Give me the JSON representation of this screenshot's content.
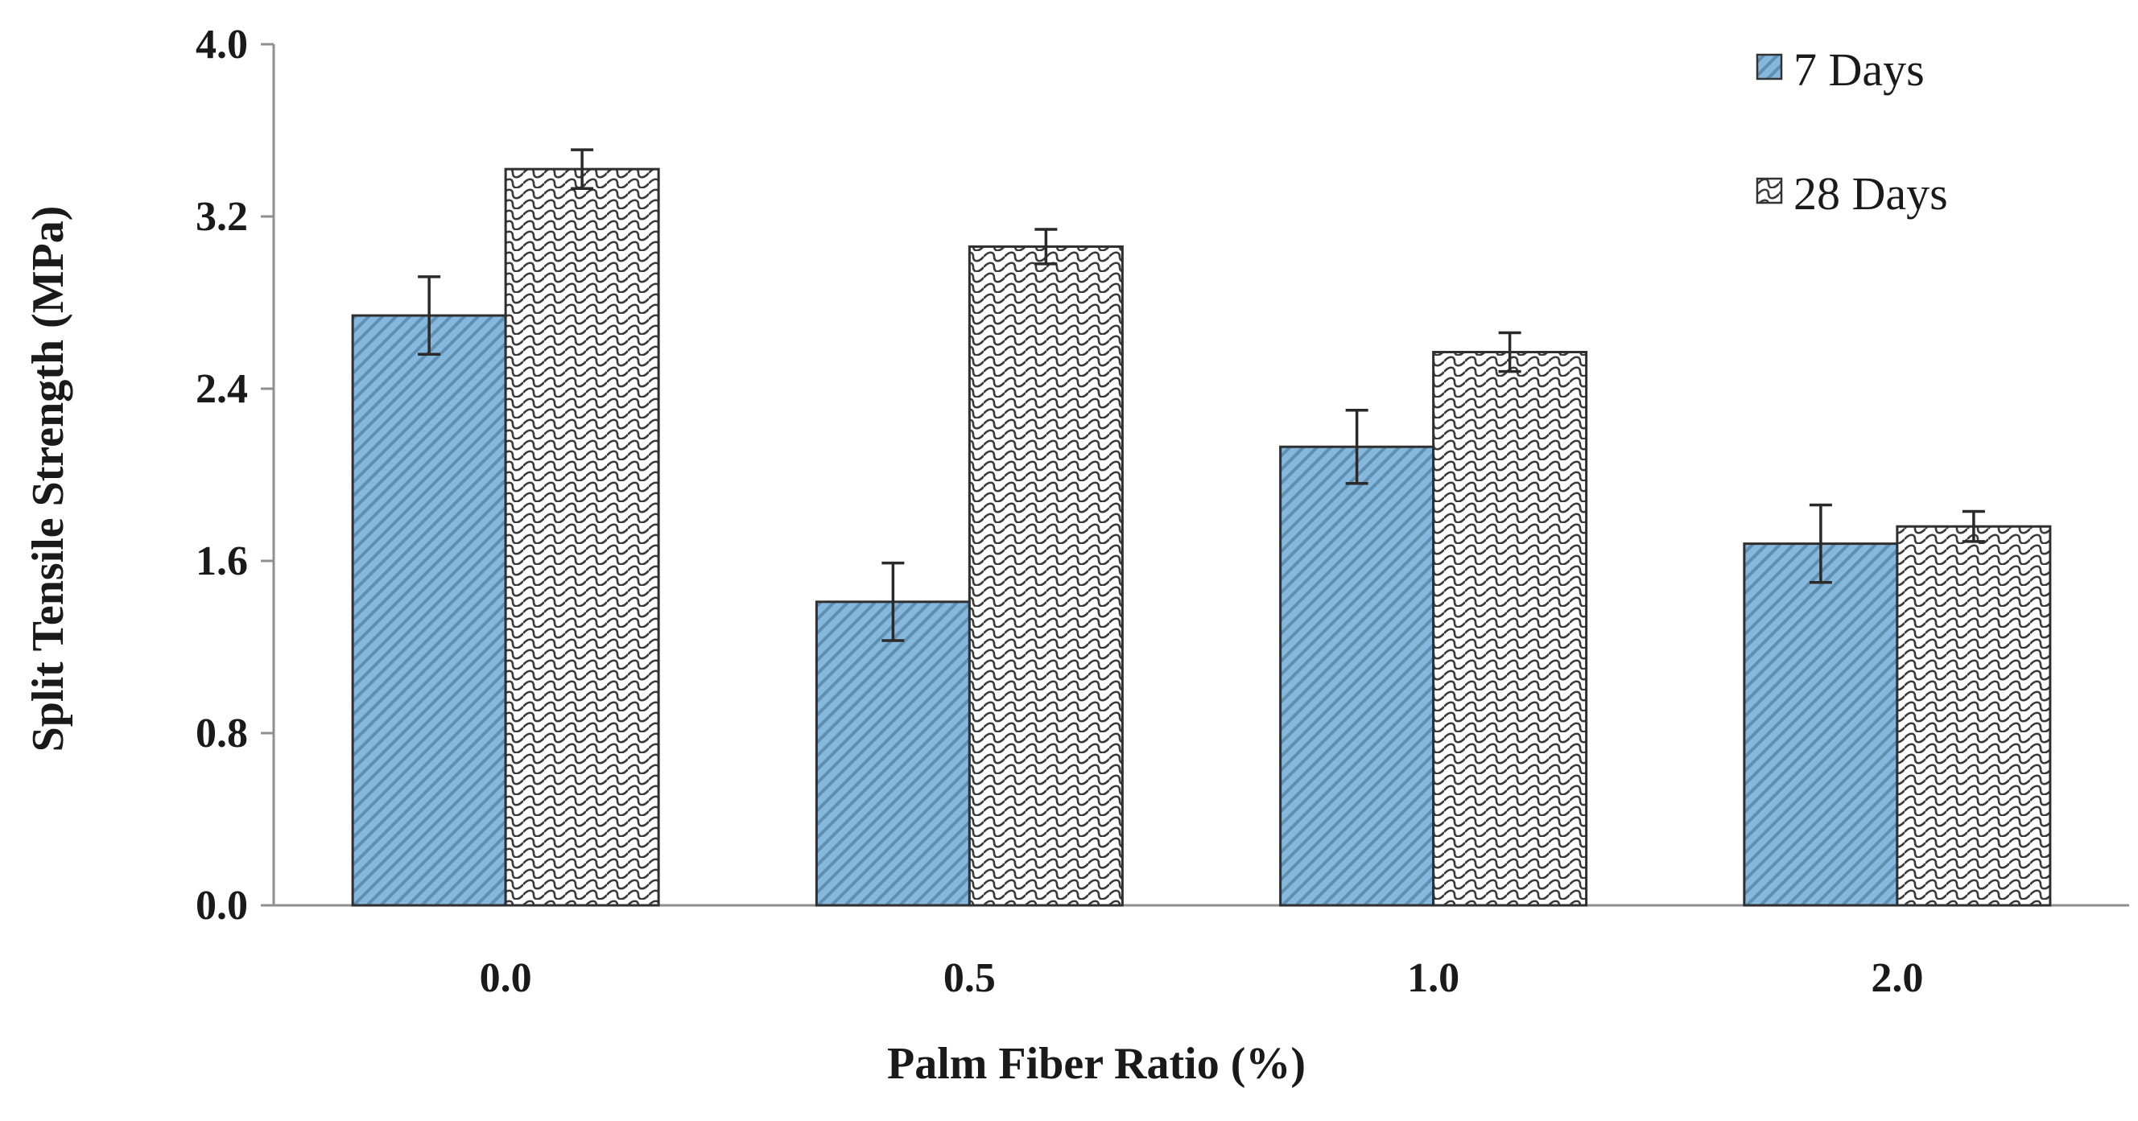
{
  "chart_data": {
    "type": "bar",
    "title": "",
    "xlabel": "Palm Fiber Ratio (%)",
    "ylabel": "Split Tensile Strength (MPa)",
    "categories": [
      "0.0",
      "0.5",
      "1.0",
      "2.0"
    ],
    "y_ticks": [
      "0.0",
      "0.8",
      "1.6",
      "2.4",
      "3.2",
      "4.0"
    ],
    "ylim": [
      0,
      4.0
    ],
    "grid": false,
    "legend_position": "top-right",
    "series": [
      {
        "name": "7 Days",
        "values": [
          2.74,
          1.41,
          2.13,
          1.68
        ],
        "errors": [
          0.18,
          0.18,
          0.17,
          0.18
        ],
        "color": "#86b7dc",
        "pattern": "diagonal-stripes"
      },
      {
        "name": "28 Days",
        "values": [
          3.42,
          3.06,
          2.57,
          1.76
        ],
        "errors": [
          0.09,
          0.08,
          0.09,
          0.07
        ],
        "color": "#ffffff",
        "pattern": "weave"
      }
    ]
  }
}
